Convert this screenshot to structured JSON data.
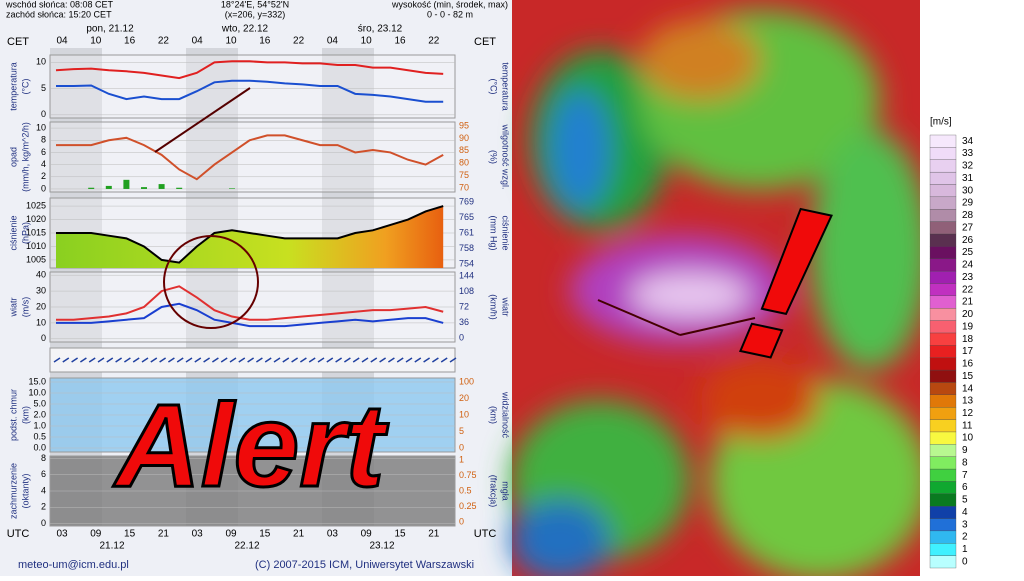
{
  "header": {
    "sunrise": "wschód słońca: 08:08 CET",
    "sunset": "zachód słońca: 15:20 CET",
    "coords": "18°24'E, 54°52'N",
    "grid": "(x=206, y=332)",
    "height_label": "wysokość (min, środek, max)",
    "height_value": "0 - 0 - 82 m"
  },
  "top_axis": {
    "zone": "CET",
    "zone_right": "CET",
    "days": [
      "pon, 21.12",
      "wto, 22.12",
      "śro, 23.12"
    ],
    "hours": [
      "04",
      "10",
      "16",
      "22",
      "04",
      "10",
      "16",
      "22",
      "04",
      "10",
      "16",
      "22"
    ]
  },
  "bottom_axis": {
    "zone": "UTC",
    "zone_right": "UTC",
    "hours": [
      "03",
      "09",
      "15",
      "21",
      "03",
      "09",
      "15",
      "21",
      "03",
      "09",
      "15",
      "21"
    ],
    "dates": [
      "21.12",
      "22.12",
      "23.12"
    ]
  },
  "panels": [
    {
      "left_label": "temperatura",
      "left_unit": "(°C)",
      "right_label": "temperatura",
      "right_unit": "(°C)",
      "ylim": [
        -0.6,
        11.4
      ],
      "left_ticks": [
        0,
        5,
        10
      ],
      "right_ticks": [],
      "series": [
        {
          "name": "max",
          "color": "#e02020",
          "values": [
            8.5,
            8.7,
            8.8,
            8.5,
            8.3,
            8,
            7.5,
            7,
            8,
            10,
            10.2,
            10.2,
            10,
            10,
            9.8,
            9.8,
            9.5,
            9.5,
            9,
            9,
            8.5,
            8,
            7.8
          ]
        },
        {
          "name": "min",
          "color": "#1a4fd0",
          "values": [
            5.5,
            5.5,
            5.6,
            4,
            3,
            3.5,
            3,
            3,
            4.5,
            6.2,
            6.5,
            6.5,
            6.3,
            6,
            5.8,
            5.5,
            5.5,
            4,
            3.8,
            3.5,
            3,
            2.5,
            2.5
          ]
        }
      ]
    },
    {
      "left_label": "opad",
      "left_unit": "(mm/h, kg/m^2/h)",
      "right_label": "wilgotność wzgl.",
      "right_unit": "(%)",
      "ylim": [
        -0.5,
        11
      ],
      "y2lim": [
        68.75,
        97.5
      ],
      "left_ticks": [
        0,
        2,
        4,
        6,
        8,
        10
      ],
      "right_ticks": [
        70,
        75,
        80,
        85,
        90,
        95
      ],
      "precip": [
        0,
        0,
        0.2,
        0.5,
        1.5,
        0.3,
        0.8,
        0.2,
        0,
        0,
        0.1,
        0,
        0,
        0,
        0,
        0,
        0,
        0,
        0,
        0,
        0,
        0,
        0
      ],
      "series": [
        {
          "name": "humidity",
          "color": "#d0502a",
          "axis": "y2",
          "values": [
            88,
            88,
            88,
            90,
            91,
            88,
            84,
            78,
            74,
            80,
            85,
            90,
            92,
            92,
            90,
            88,
            88,
            85,
            86,
            85,
            82,
            80,
            84
          ]
        }
      ]
    },
    {
      "left_label": "ciśnienie",
      "left_unit": "(hPa)",
      "right_label": "ciśnienie",
      "right_unit": "(mm Hg)",
      "ylim": [
        1002,
        1028
      ],
      "left_ticks": [
        1005,
        1010,
        1015,
        1020,
        1025
      ],
      "right_ticks": [
        754,
        758,
        761,
        765,
        769
      ],
      "series": [
        {
          "name": "pressure",
          "color": "#000000",
          "values": [
            1015,
            1015,
            1015,
            1014,
            1013,
            1010,
            1005,
            1004,
            1010,
            1015,
            1016,
            1015,
            1014,
            1013,
            1013,
            1013,
            1013,
            1015,
            1016,
            1018,
            1020,
            1023,
            1025
          ]
        }
      ]
    },
    {
      "left_label": "wiatr",
      "left_unit": "(m/s)",
      "right_label": "wiatr",
      "right_unit": "(km/h)",
      "ylim": [
        -2,
        42
      ],
      "left_ticks": [
        0,
        10,
        20,
        30,
        40
      ],
      "right_ticks": [
        0,
        36,
        72,
        108,
        144
      ],
      "series": [
        {
          "name": "gust",
          "color": "#e03030",
          "values": [
            12,
            12,
            13,
            14,
            16,
            20,
            30,
            33,
            26,
            18,
            14,
            12,
            12,
            13,
            14,
            15,
            16,
            17,
            18,
            18,
            19,
            20,
            17
          ]
        },
        {
          "name": "wind",
          "color": "#1a3fd0",
          "values": [
            10,
            10,
            10,
            11,
            12,
            13,
            20,
            22,
            18,
            12,
            10,
            8,
            8,
            8,
            9,
            10,
            11,
            12,
            11,
            12,
            13,
            13,
            10
          ]
        }
      ]
    },
    {
      "left_label": "podst. chmur",
      "left_unit": "(km)",
      "right_label": "widzialność",
      "right_unit": "(km)",
      "left_ticks": [
        "0.0",
        "0.5",
        "1.0",
        "2.0",
        "5.0",
        "10.0",
        "15.0"
      ],
      "right_ticks": [
        0,
        5,
        10,
        20,
        100
      ],
      "series": []
    },
    {
      "left_label": "zachmurzenie",
      "left_unit": "(oktanty)",
      "right_label": "mgła",
      "right_unit": "(frakcja)",
      "ylim": [
        -0.3,
        8.3
      ],
      "left_ticks": [
        0,
        2,
        4,
        6,
        8
      ],
      "right_ticks": [
        0,
        0.25,
        0.5,
        0.75,
        1
      ],
      "series": []
    }
  ],
  "footer": {
    "email": "meteo-um@icm.edu.pl",
    "copyright": "(C) 2007-2015 ICM, Uniwersytet Warszawski"
  },
  "overlay": {
    "alert": "Alert",
    "exclamation": "!"
  },
  "colorbar": {
    "unit": "[m/s]",
    "ticks": [
      0,
      1,
      2,
      3,
      4,
      5,
      6,
      7,
      8,
      9,
      10,
      11,
      12,
      13,
      14,
      15,
      16,
      17,
      18,
      19,
      20,
      21,
      22,
      23,
      24,
      25,
      26,
      27,
      28,
      29,
      30,
      31,
      32,
      33,
      34
    ],
    "colors": [
      "#b8ffff",
      "#40f0ff",
      "#30b8f0",
      "#2070d8",
      "#1040a8",
      "#0a7a20",
      "#10a830",
      "#40d040",
      "#80ec60",
      "#b8f890",
      "#f8f840",
      "#f8d020",
      "#f0a010",
      "#e07808",
      "#b84810",
      "#901010",
      "#c01010",
      "#e82020",
      "#f84040",
      "#f86070",
      "#f890a0",
      "#e060d0",
      "#c030c0",
      "#a020b0",
      "#8a1888",
      "#6a1060",
      "#5a3050",
      "#906078",
      "#b08ca8",
      "#c8a8c8",
      "#d8b8dc",
      "#e0c4e8",
      "#e8d0f0",
      "#f0dcf8",
      "#f6e8fc"
    ]
  }
}
